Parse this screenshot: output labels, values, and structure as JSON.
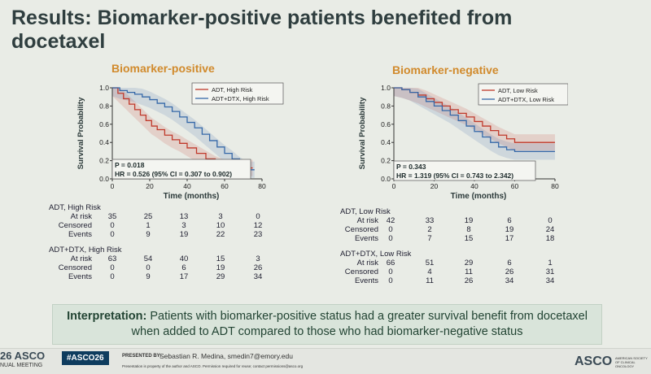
{
  "slide": {
    "title": "Results: Biomarker-positive patients benefited from docetaxel"
  },
  "chart_data": [
    {
      "type": "line",
      "title": "Biomarker-positive",
      "xlabel": "Time (months)",
      "ylabel": "Survival Probability",
      "xlim": [
        0,
        80
      ],
      "ylim": [
        0,
        1
      ],
      "xticks": [
        0,
        20,
        40,
        60,
        80
      ],
      "yticks": [
        "0.0",
        "0.2",
        "0.4",
        "0.6",
        "0.8",
        "1.0"
      ],
      "legend_position": "top-right",
      "series": [
        {
          "name": "ADT, High Risk",
          "color": "#c0392b",
          "x": [
            0,
            3,
            6,
            9,
            12,
            15,
            18,
            21,
            24,
            28,
            32,
            36,
            40,
            45,
            50,
            55,
            60,
            65,
            70,
            75
          ],
          "y": [
            1.0,
            0.94,
            0.88,
            0.82,
            0.76,
            0.7,
            0.64,
            0.58,
            0.54,
            0.48,
            0.43,
            0.39,
            0.34,
            0.28,
            0.22,
            0.16,
            0.12,
            0.12,
            0.12,
            0.12
          ]
        },
        {
          "name": "ADT+DTX, High Risk",
          "color": "#3568a8",
          "x": [
            0,
            4,
            8,
            12,
            16,
            20,
            24,
            28,
            32,
            36,
            40,
            44,
            48,
            52,
            56,
            60,
            64,
            68,
            72,
            76
          ],
          "y": [
            1.0,
            0.97,
            0.95,
            0.93,
            0.9,
            0.87,
            0.83,
            0.79,
            0.74,
            0.68,
            0.62,
            0.56,
            0.49,
            0.42,
            0.35,
            0.28,
            0.22,
            0.15,
            0.1,
            0.1
          ]
        }
      ],
      "annotation": [
        "P = 0.018",
        "HR = 0.526 (95% CI = 0.307 to 0.902)"
      ],
      "risk_table": {
        "groups": [
          {
            "name": "ADT, High Risk",
            "rows": [
              {
                "label": "At risk",
                "values": [
                  "35",
                  "25",
                  "13",
                  "3",
                  "0"
                ]
              },
              {
                "label": "Censored",
                "values": [
                  "0",
                  "1",
                  "3",
                  "10",
                  "12"
                ]
              },
              {
                "label": "Events",
                "values": [
                  "0",
                  "9",
                  "19",
                  "22",
                  "23"
                ]
              }
            ]
          },
          {
            "name": "ADT+DTX, High Risk",
            "rows": [
              {
                "label": "At risk",
                "values": [
                  "63",
                  "54",
                  "40",
                  "15",
                  "3"
                ]
              },
              {
                "label": "Censored",
                "values": [
                  "0",
                  "0",
                  "6",
                  "19",
                  "26"
                ]
              },
              {
                "label": "Events",
                "values": [
                  "0",
                  "9",
                  "17",
                  "29",
                  "34"
                ]
              }
            ]
          }
        ]
      }
    },
    {
      "type": "line",
      "title": "Biomarker-negative",
      "xlabel": "Time (months)",
      "ylabel": "Survival Probability",
      "xlim": [
        0,
        80
      ],
      "ylim": [
        0,
        1
      ],
      "xticks": [
        0,
        20,
        40,
        60,
        80
      ],
      "yticks": [
        "0.0",
        "0.2",
        "0.4",
        "0.6",
        "0.8",
        "1.0"
      ],
      "legend_position": "top-right",
      "series": [
        {
          "name": "ADT, Low Risk",
          "color": "#c0392b",
          "x": [
            0,
            4,
            8,
            12,
            16,
            20,
            24,
            28,
            32,
            36,
            40,
            44,
            48,
            52,
            56,
            60,
            70,
            80
          ],
          "y": [
            1.0,
            0.98,
            0.95,
            0.92,
            0.88,
            0.84,
            0.8,
            0.76,
            0.72,
            0.68,
            0.63,
            0.58,
            0.53,
            0.48,
            0.44,
            0.4,
            0.4,
            0.4
          ]
        },
        {
          "name": "ADT+DTX, Low Risk",
          "color": "#3568a8",
          "x": [
            0,
            4,
            8,
            12,
            16,
            20,
            24,
            28,
            32,
            36,
            40,
            44,
            48,
            52,
            56,
            60,
            70,
            80
          ],
          "y": [
            1.0,
            0.98,
            0.95,
            0.9,
            0.85,
            0.8,
            0.75,
            0.7,
            0.64,
            0.58,
            0.52,
            0.46,
            0.4,
            0.35,
            0.32,
            0.3,
            0.3,
            0.3
          ]
        }
      ],
      "annotation": [
        "P = 0.343",
        "HR = 1.319 (95% CI = 0.743 to 2.342)"
      ],
      "risk_table": {
        "groups": [
          {
            "name": "ADT, Low Risk",
            "rows": [
              {
                "label": "At risk",
                "values": [
                  "42",
                  "33",
                  "19",
                  "6",
                  "0"
                ]
              },
              {
                "label": "Censored",
                "values": [
                  "0",
                  "2",
                  "8",
                  "19",
                  "24"
                ]
              },
              {
                "label": "Events",
                "values": [
                  "0",
                  "7",
                  "15",
                  "17",
                  "18"
                ]
              }
            ]
          },
          {
            "name": "ADT+DTX, Low Risk",
            "rows": [
              {
                "label": "At risk",
                "values": [
                  "66",
                  "51",
                  "29",
                  "6",
                  "1"
                ]
              },
              {
                "label": "Censored",
                "values": [
                  "0",
                  "4",
                  "11",
                  "26",
                  "31"
                ]
              },
              {
                "label": "Events",
                "values": [
                  "0",
                  "11",
                  "26",
                  "34",
                  "34"
                ]
              }
            ]
          }
        ]
      }
    }
  ],
  "interpretation": {
    "label": "Interpretation:",
    "text": "Patients with biomarker-positive status had a greater survival benefit from docetaxel when added to ADT compared to those who had biomarker-negative status"
  },
  "footer": {
    "left_logo": "26 ASCO",
    "left_sub": "NUAL MEETING",
    "hashtag": "#ASCO26",
    "presented_by_label": "PRESENTED BY:",
    "presenter": "Sebastian R. Medina, smedin7@emory.edu",
    "disclaimer": "Presentation is property of the author and ASCO. Permission required for reuse; contact permissions@asco.org",
    "right_logo": "ASCO",
    "right_small": "AMERICAN SOCIETY OF CLINICAL ONCOLOGY"
  }
}
